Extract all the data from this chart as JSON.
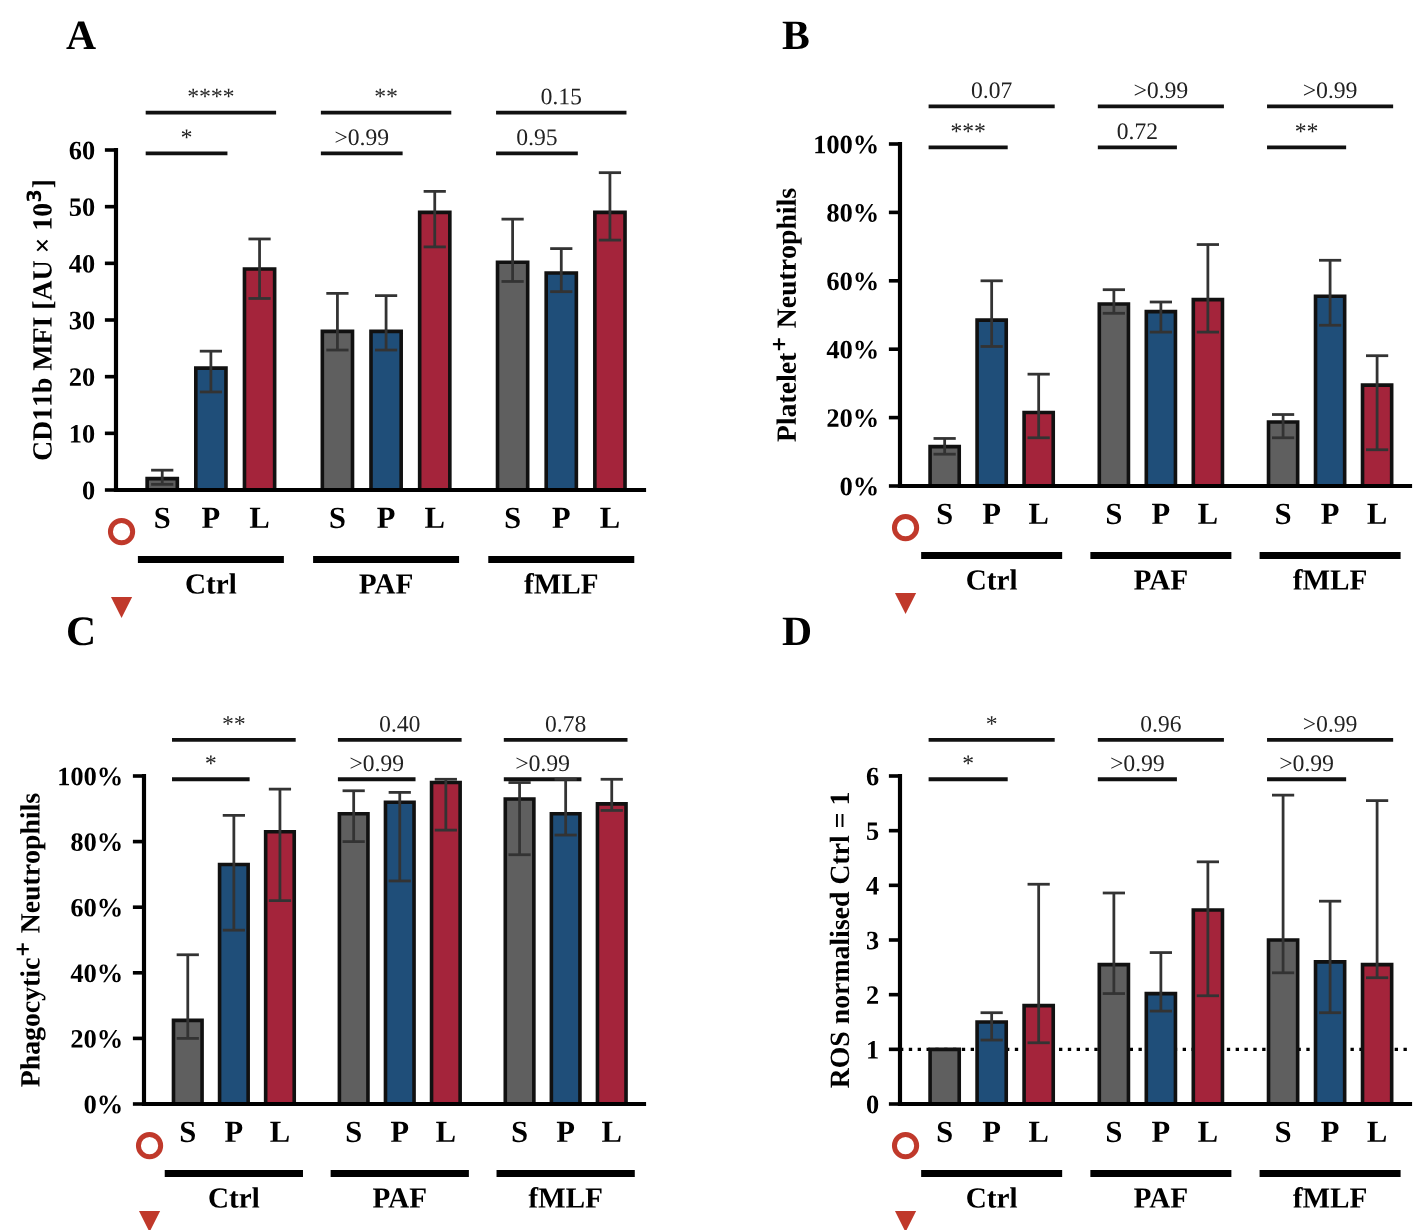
{
  "chart_data": [
    {
      "type": "bar",
      "title": "A",
      "ylabel": "CD11b MFI [AU × 10$^{3}$]",
      "categories": [
        "S",
        "P",
        "L",
        "S",
        "P",
        "L",
        "S",
        "P",
        "L"
      ],
      "values": [
        2,
        21.5,
        39,
        28,
        28,
        49,
        40.2,
        38.3,
        49
      ],
      "colors": [
        "#5f5f5f",
        "#1f4e79",
        "#a4243b",
        "#5f5f5f",
        "#1f4e79",
        "#a4243b",
        "#5f5f5f",
        "#1f4e79",
        "#a4243b"
      ],
      "errors": [
        [
          1,
          3.5
        ],
        [
          17.3,
          24.5
        ],
        [
          33.8,
          44.3
        ],
        [
          24.7,
          34.7
        ],
        [
          24.7,
          34.3
        ],
        [
          42.9,
          52.7
        ],
        [
          36.8,
          47.8
        ],
        [
          35,
          42.6
        ],
        [
          44.1,
          56
        ]
      ],
      "ylim": [
        0,
        60
      ],
      "yticks": [
        0,
        10,
        20,
        30,
        40,
        50,
        60
      ],
      "annotations": [
        "*",
        "****",
        ">0.99",
        "**",
        "0.95",
        "0.15",
        "Ctrl",
        "PAF",
        "fMLF"
      ]
    },
    {
      "type": "bar",
      "title": "B",
      "ylabel": "Platelet$^{+}$ Neutrophils",
      "categories": [
        "S",
        "P",
        "L",
        "S",
        "P",
        "L",
        "S",
        "P",
        "L"
      ],
      "values": [
        11.5,
        48.5,
        21.5,
        53.2,
        51,
        54.5,
        18.7,
        55.5,
        29.5
      ],
      "colors": [
        "#5f5f5f",
        "#1f4e79",
        "#a4243b",
        "#5f5f5f",
        "#1f4e79",
        "#a4243b",
        "#5f5f5f",
        "#1f4e79",
        "#a4243b"
      ],
      "errors": [
        [
          9.3,
          13.9
        ],
        [
          40.8,
          60
        ],
        [
          14.1,
          32.7
        ],
        [
          50.5,
          57.4
        ],
        [
          45,
          53.8
        ],
        [
          45,
          70.6
        ],
        [
          14.1,
          20.9
        ],
        [
          47,
          66
        ],
        [
          10.6,
          38.1
        ]
      ],
      "ylim": [
        0,
        100
      ],
      "yticks": [
        {
          "value": 0,
          "label": "0%"
        },
        {
          "value": 20,
          "label": "20%"
        },
        {
          "value": 40,
          "label": "40%"
        },
        {
          "value": 60,
          "label": "60%"
        },
        {
          "value": 80,
          "label": "80%"
        },
        {
          "value": 100,
          "label": "100%"
        }
      ],
      "annotations": [
        "***",
        "0.07",
        "0.72",
        ">0.99",
        "**",
        ">0.99",
        "Ctrl",
        "PAF",
        "fMLF"
      ]
    },
    {
      "type": "bar",
      "title": "C",
      "ylabel": "Phagocytic$^{+}$ Neutrophils",
      "categories": [
        "S",
        "P",
        "L",
        "S",
        "P",
        "L",
        "S",
        "P",
        "L"
      ],
      "values": [
        25.5,
        73,
        83,
        88.5,
        92,
        98,
        93,
        88.5,
        91.5
      ],
      "colors": [
        "#5f5f5f",
        "#1f4e79",
        "#a4243b",
        "#5f5f5f",
        "#1f4e79",
        "#a4243b",
        "#5f5f5f",
        "#1f4e79",
        "#a4243b"
      ],
      "errors": [
        [
          20,
          45.5
        ],
        [
          53,
          88
        ],
        [
          62,
          96
        ],
        [
          80,
          95.5
        ],
        [
          68,
          95
        ],
        [
          83.5,
          99
        ],
        [
          76,
          98
        ],
        [
          82,
          99
        ],
        [
          89.5,
          99
        ]
      ],
      "ylim": [
        0,
        100
      ],
      "yticks": [
        {
          "value": 0,
          "label": "0%"
        },
        {
          "value": 20,
          "label": "20%"
        },
        {
          "value": 40,
          "label": "40%"
        },
        {
          "value": 60,
          "label": "60%"
        },
        {
          "value": 80,
          "label": "80%"
        },
        {
          "value": 100,
          "label": "100%"
        }
      ],
      "annotations": [
        "*",
        "**",
        ">0.99",
        "0.40",
        ">0.99",
        "0.78",
        "Ctrl",
        "PAF",
        "fMLF"
      ]
    },
    {
      "type": "bar",
      "title": "D",
      "ylabel": "ROS normalised Ctrl = 1",
      "categories": [
        "S",
        "P",
        "L",
        "S",
        "P",
        "L",
        "S",
        "P",
        "L"
      ],
      "values": [
        1,
        1.5,
        1.8,
        2.55,
        2.02,
        3.55,
        3,
        2.6,
        2.55
      ],
      "colors": [
        "#5f5f5f",
        "#1f4e79",
        "#a4243b",
        "#5f5f5f",
        "#1f4e79",
        "#a4243b",
        "#5f5f5f",
        "#1f4e79",
        "#a4243b"
      ],
      "errors": [
        null,
        [
          1.17,
          1.67
        ],
        [
          1.12,
          4.02
        ],
        [
          2.02,
          3.86
        ],
        [
          1.7,
          2.77
        ],
        [
          1.98,
          4.43
        ],
        [
          2.4,
          5.65
        ],
        [
          1.67,
          3.71
        ],
        [
          2.31,
          5.55
        ]
      ],
      "ylim": [
        0,
        6
      ],
      "yticks": [
        0,
        1,
        2,
        3,
        4,
        5,
        6
      ],
      "ref_lines": [
        {
          "axis": "y",
          "value": 1,
          "color": "#000000",
          "line_style": "dotted"
        }
      ],
      "annotations": [
        "*",
        "*",
        ">0.99",
        "0.96",
        ">0.99",
        ">0.99",
        "Ctrl",
        "PAF",
        "fMLF"
      ]
    }
  ]
}
